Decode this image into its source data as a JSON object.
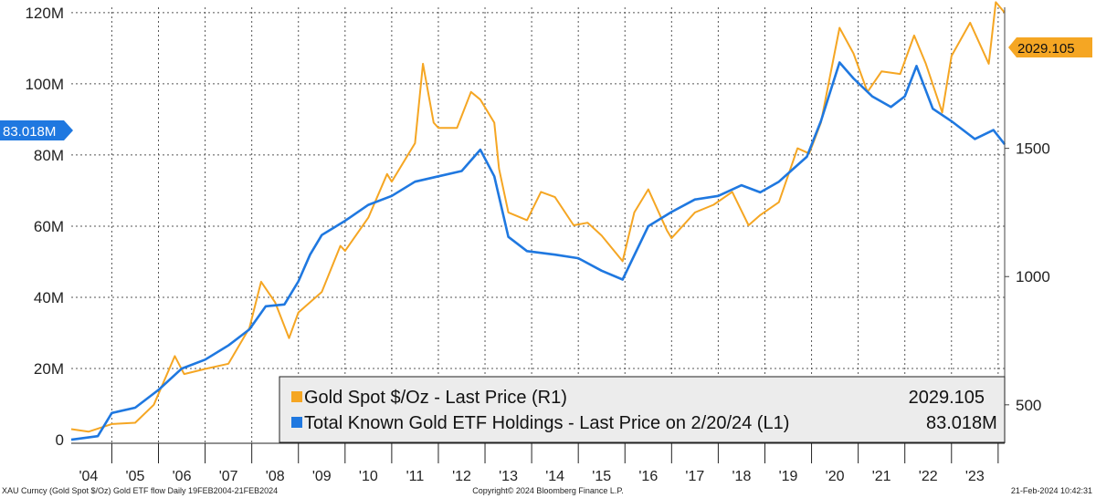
{
  "chart_data": {
    "type": "line",
    "title": "XAU Curncy (Gold Spot $/Oz) Gold ETF flow",
    "xlabel": "",
    "ylabel_left": "",
    "ylabel_right": "",
    "x_ticks": [
      "'04",
      "'05",
      "'06",
      "'07",
      "'08",
      "'09",
      "'10",
      "'11",
      "'12",
      "'13",
      "'14",
      "'15",
      "'16",
      "'17",
      "'18",
      "'19",
      "'20",
      "'21",
      "'22",
      "'23"
    ],
    "left_axis": {
      "ticks": [
        "0",
        "20M",
        "40M",
        "60M",
        "80M",
        "100M",
        "120M"
      ],
      "range": [
        -1000000,
        121500000
      ]
    },
    "right_axis": {
      "ticks": [
        "500",
        "1000",
        "1500"
      ],
      "range": [
        350,
        2050
      ]
    },
    "xlim": [
      2004.13,
      2024.14
    ],
    "series": [
      {
        "name": "Gold Spot $/Oz - Last Price (R1)",
        "axis": "right",
        "color": "#f5a623",
        "last_value": "2029.105",
        "x": [
          2004.13,
          2004.5,
          2005.0,
          2005.5,
          2005.9,
          2006.35,
          2006.55,
          2007.0,
          2007.5,
          2007.95,
          2008.2,
          2008.5,
          2008.8,
          2009.0,
          2009.5,
          2009.9,
          2010.0,
          2010.5,
          2010.9,
          2011.0,
          2011.5,
          2011.67,
          2011.9,
          2012.0,
          2012.4,
          2012.7,
          2012.9,
          2013.2,
          2013.3,
          2013.5,
          2013.9,
          2014.2,
          2014.5,
          2014.9,
          2015.2,
          2015.5,
          2015.95,
          2016.2,
          2016.5,
          2016.9,
          2017.0,
          2017.5,
          2017.9,
          2018.3,
          2018.65,
          2018.9,
          2019.3,
          2019.7,
          2019.95,
          2020.2,
          2020.6,
          2020.9,
          2021.2,
          2021.5,
          2021.9,
          2022.2,
          2022.45,
          2022.8,
          2023.0,
          2023.4,
          2023.8,
          2023.95,
          2024.14
        ],
        "y": [
          405,
          395,
          425,
          430,
          500,
          690,
          620,
          640,
          660,
          800,
          980,
          900,
          760,
          860,
          940,
          1120,
          1100,
          1230,
          1400,
          1370,
          1520,
          1830,
          1600,
          1580,
          1580,
          1720,
          1690,
          1600,
          1420,
          1250,
          1220,
          1330,
          1310,
          1200,
          1210,
          1160,
          1060,
          1250,
          1340,
          1180,
          1150,
          1250,
          1280,
          1330,
          1200,
          1240,
          1290,
          1500,
          1480,
          1600,
          1970,
          1870,
          1720,
          1800,
          1790,
          1940,
          1830,
          1640,
          1860,
          1990,
          1830,
          2070,
          2029
        ]
      },
      {
        "name": "Total Known Gold ETF Holdings - Last Price on 2/20/24 (L1)",
        "axis": "left",
        "color": "#1f78e0",
        "last_value": "83.018M",
        "x": [
          2004.13,
          2004.7,
          2005.0,
          2005.5,
          2006.0,
          2006.5,
          2007.0,
          2007.5,
          2007.95,
          2008.3,
          2008.7,
          2009.0,
          2009.25,
          2009.5,
          2010.0,
          2010.5,
          2011.0,
          2011.5,
          2012.0,
          2012.5,
          2012.9,
          2013.2,
          2013.5,
          2013.9,
          2014.5,
          2015.0,
          2015.5,
          2015.95,
          2016.5,
          2017.0,
          2017.5,
          2018.0,
          2018.5,
          2018.9,
          2019.3,
          2019.6,
          2019.9,
          2020.2,
          2020.6,
          2020.9,
          2021.3,
          2021.7,
          2022.0,
          2022.25,
          2022.6,
          2023.0,
          2023.5,
          2023.9,
          2024.14
        ],
        "y": [
          0,
          1000000,
          7500000,
          9000000,
          14000000,
          20000000,
          22500000,
          26500000,
          31000000,
          37500000,
          38000000,
          44500000,
          52000000,
          57500000,
          61500000,
          66000000,
          68500000,
          72500000,
          74000000,
          75500000,
          81500000,
          74000000,
          57000000,
          53000000,
          52000000,
          51000000,
          47500000,
          45000000,
          60000000,
          64000000,
          67500000,
          68500000,
          71500000,
          69500000,
          72500000,
          76000000,
          79500000,
          89500000,
          106000000,
          101500000,
          96500000,
          93500000,
          96500000,
          105000000,
          93000000,
          89500000,
          84500000,
          87000000,
          83018000
        ]
      }
    ],
    "legend": {
      "entries": [
        {
          "label": "Gold Spot $/Oz - Last Price (R1)",
          "value": "2029.105"
        },
        {
          "label": "Total Known Gold ETF Holdings - Last Price on 2/20/24 (L1)",
          "value": "83.018M"
        }
      ],
      "placement": "bottom-right"
    },
    "grid": true
  },
  "tags": {
    "left": "83.018M",
    "right": "2029.105"
  },
  "footer": {
    "left": "XAU Curncy (Gold Spot  $/Oz) Gold ETF flow  Daily 19FEB2004-21FEB2024",
    "center": "Copyright© 2024 Bloomberg Finance L.P.",
    "right": "21-Feb-2024 10:42:31"
  },
  "colors": {
    "gold": "#f5a623",
    "etf": "#1f78e0",
    "grid": "#555555"
  }
}
